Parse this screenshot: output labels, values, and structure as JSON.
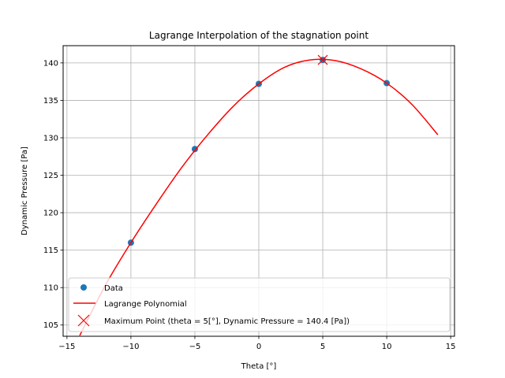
{
  "chart_data": {
    "type": "line",
    "title": "Lagrange Interpolation of the stagnation point",
    "xlabel": "Theta [°]",
    "ylabel": "Dynamic Pressure [Pa]",
    "xlim": [
      -15.3,
      15.3
    ],
    "ylim": [
      103.5,
      142.3
    ],
    "xticks": [
      -15,
      -10,
      -5,
      0,
      5,
      10,
      15
    ],
    "xtick_labels": [
      "−15",
      "−10",
      "−5",
      "0",
      "5",
      "10",
      "15"
    ],
    "yticks": [
      105,
      110,
      115,
      120,
      125,
      130,
      135,
      140
    ],
    "yticks_labels": [
      "105",
      "110",
      "115",
      "120",
      "125",
      "130",
      "135",
      "140"
    ],
    "grid": true,
    "legend_position": "lower-left",
    "series": [
      {
        "name": "Data",
        "kind": "scatter",
        "color": "#1f77b4",
        "x": [
          -10,
          -5,
          0,
          5,
          10
        ],
        "y": [
          116.0,
          128.5,
          137.2,
          140.4,
          137.3
        ]
      },
      {
        "name": "Lagrange Polynomial",
        "kind": "line",
        "color": "#ff0000",
        "x": [
          -14,
          -12,
          -10,
          -8,
          -6,
          -4,
          -2,
          0,
          2,
          4,
          6,
          8,
          10,
          12,
          14
        ],
        "y": [
          103.6,
          110.3,
          116.0,
          121.2,
          126.1,
          130.4,
          134.2,
          137.2,
          139.4,
          140.4,
          140.3,
          139.2,
          137.3,
          134.4,
          130.4
        ]
      },
      {
        "name": "Maximum Point (theta = 5[°], Dynamic Pressure = 140.4 [Pa])",
        "kind": "marker-x",
        "color": "#ff0000",
        "x": [
          5
        ],
        "y": [
          140.4
        ]
      }
    ]
  }
}
